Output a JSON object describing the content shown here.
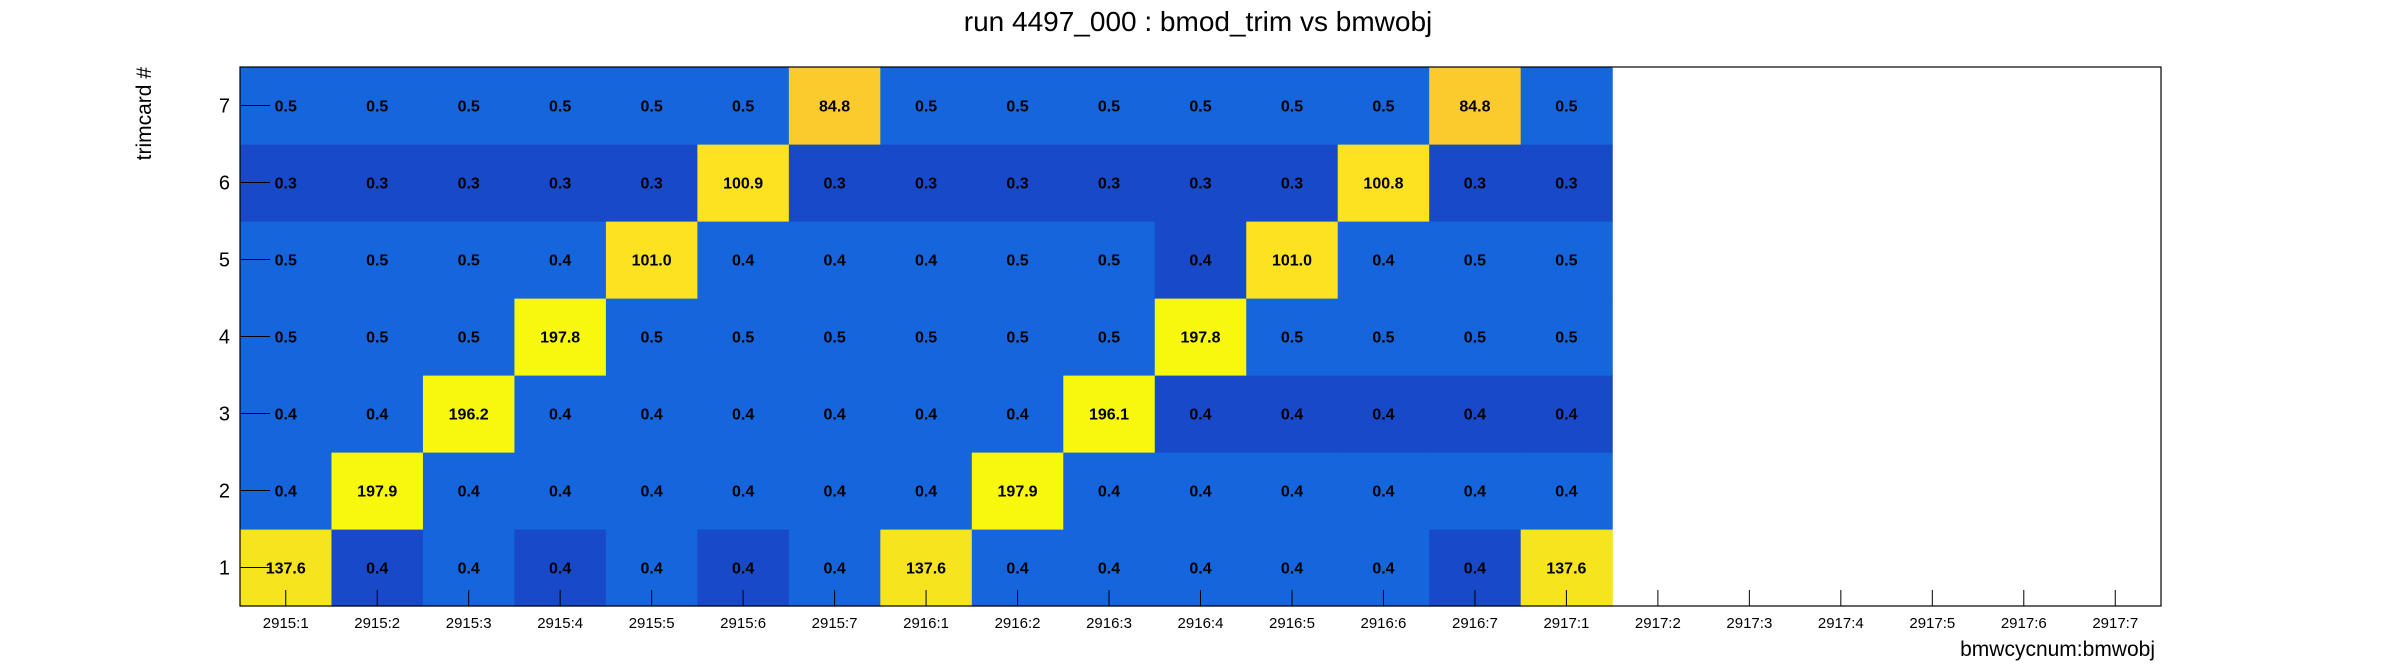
{
  "chart_data": {
    "type": "heatmap",
    "title": "run 4497_000 : bmod_trim vs bmwobj",
    "xlabel": "bmwcycnum:bmwobj",
    "ylabel": "trimcard #",
    "x_categories": [
      "2915:1",
      "2915:2",
      "2915:3",
      "2915:4",
      "2915:5",
      "2915:6",
      "2915:7",
      "2916:1",
      "2916:2",
      "2916:3",
      "2916:4",
      "2916:5",
      "2916:6",
      "2916:7",
      "2917:1",
      "2917:2",
      "2917:3",
      "2917:4",
      "2917:5",
      "2917:6",
      "2917:7"
    ],
    "y_categories": [
      "1",
      "2",
      "3",
      "4",
      "5",
      "6",
      "7"
    ],
    "values": [
      [
        137.6,
        0.4,
        0.4,
        0.4,
        0.4,
        0.4,
        0.4,
        137.6,
        0.4,
        0.4,
        0.4,
        0.4,
        0.4,
        0.4,
        137.6,
        null,
        null,
        null,
        null,
        null,
        null
      ],
      [
        0.4,
        197.9,
        0.4,
        0.4,
        0.4,
        0.4,
        0.4,
        0.4,
        197.9,
        0.4,
        0.4,
        0.4,
        0.4,
        0.4,
        0.4,
        null,
        null,
        null,
        null,
        null,
        null
      ],
      [
        0.4,
        0.4,
        196.2,
        0.4,
        0.4,
        0.4,
        0.4,
        0.4,
        0.4,
        196.1,
        0.4,
        0.4,
        0.4,
        0.4,
        0.4,
        null,
        null,
        null,
        null,
        null,
        null
      ],
      [
        0.5,
        0.5,
        0.5,
        197.8,
        0.5,
        0.5,
        0.5,
        0.5,
        0.5,
        0.5,
        197.8,
        0.5,
        0.5,
        0.5,
        0.5,
        null,
        null,
        null,
        null,
        null,
        null
      ],
      [
        0.5,
        0.5,
        0.5,
        0.4,
        101.0,
        0.4,
        0.4,
        0.4,
        0.5,
        0.5,
        0.4,
        101.0,
        0.4,
        0.5,
        0.5,
        null,
        null,
        null,
        null,
        null,
        null
      ],
      [
        0.3,
        0.3,
        0.3,
        0.3,
        0.3,
        100.9,
        0.3,
        0.3,
        0.3,
        0.3,
        0.3,
        0.3,
        100.8,
        0.3,
        0.3,
        null,
        null,
        null,
        null,
        null,
        null
      ],
      [
        0.5,
        0.5,
        0.5,
        0.5,
        0.5,
        0.5,
        84.8,
        0.5,
        0.5,
        0.5,
        0.5,
        0.5,
        0.5,
        84.8,
        0.5,
        null,
        null,
        null,
        null,
        null,
        null
      ]
    ],
    "colors": {
      "low_dark": "#1849C8",
      "low": "#1565DC",
      "high_84": "#FBCB2D",
      "high_100": "#FCE220",
      "high_137": "#F5E41E",
      "high_196": "#F8F80E"
    },
    "grid": false,
    "legend": "none"
  }
}
